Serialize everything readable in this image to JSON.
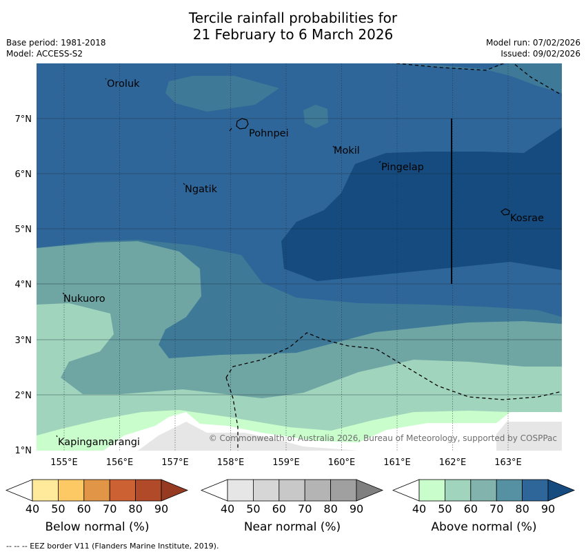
{
  "title": {
    "line1": "Tercile rainfall probabilities for",
    "line2": "21 February to 6 March 2026"
  },
  "meta_left": {
    "base_period": "Base period: 1981-2018",
    "model": "Model: ACCESS-S2"
  },
  "meta_right": {
    "model_run": "Model run: 07/02/2026",
    "issued": "Issued: 09/02/2026"
  },
  "map": {
    "lon_labels": [
      "155°E",
      "156°E",
      "157°E",
      "158°E",
      "159°E",
      "160°E",
      "161°E",
      "162°E",
      "163°E"
    ],
    "lat_labels": [
      "1°N",
      "2°N",
      "3°N",
      "4°N",
      "5°N",
      "6°N",
      "7°N"
    ],
    "places": [
      "Oroluk",
      "Pohnpei",
      "Mokil",
      "Pingelap",
      "Ngatik",
      "Kosrae",
      "Nukuoro",
      "Kapingamarangi"
    ],
    "copyright": "© Commonwealth of Australia 2026, Bureau of Meteorology, supported by COSPPac"
  },
  "colorbars": {
    "below": {
      "label": "Below normal (%)",
      "ticks": [
        "40",
        "50",
        "60",
        "70",
        "80",
        "90"
      ],
      "colors": [
        "#ffffff",
        "#ffe99a",
        "#fdc964",
        "#e09547",
        "#cc6133",
        "#b04a28",
        "#963a22"
      ]
    },
    "near": {
      "label": "Near normal (%)",
      "ticks": [
        "40",
        "50",
        "60",
        "70",
        "80",
        "90"
      ],
      "colors": [
        "#ffffff",
        "#e6e6e6",
        "#d6d6d6",
        "#c8c8c8",
        "#b4b4b4",
        "#a0a0a0",
        "#7f7f7f"
      ]
    },
    "above": {
      "label": "Above normal (%)",
      "ticks": [
        "40",
        "50",
        "60",
        "70",
        "80",
        "90"
      ],
      "colors": [
        "#ffffff",
        "#c9fdcc",
        "#a0d4bd",
        "#82b3ac",
        "#5690a3",
        "#2f6699",
        "#154b7f"
      ]
    }
  },
  "footnote": "--  --  -- EEZ border V11 (Flanders Marine Institute, 2019)."
}
